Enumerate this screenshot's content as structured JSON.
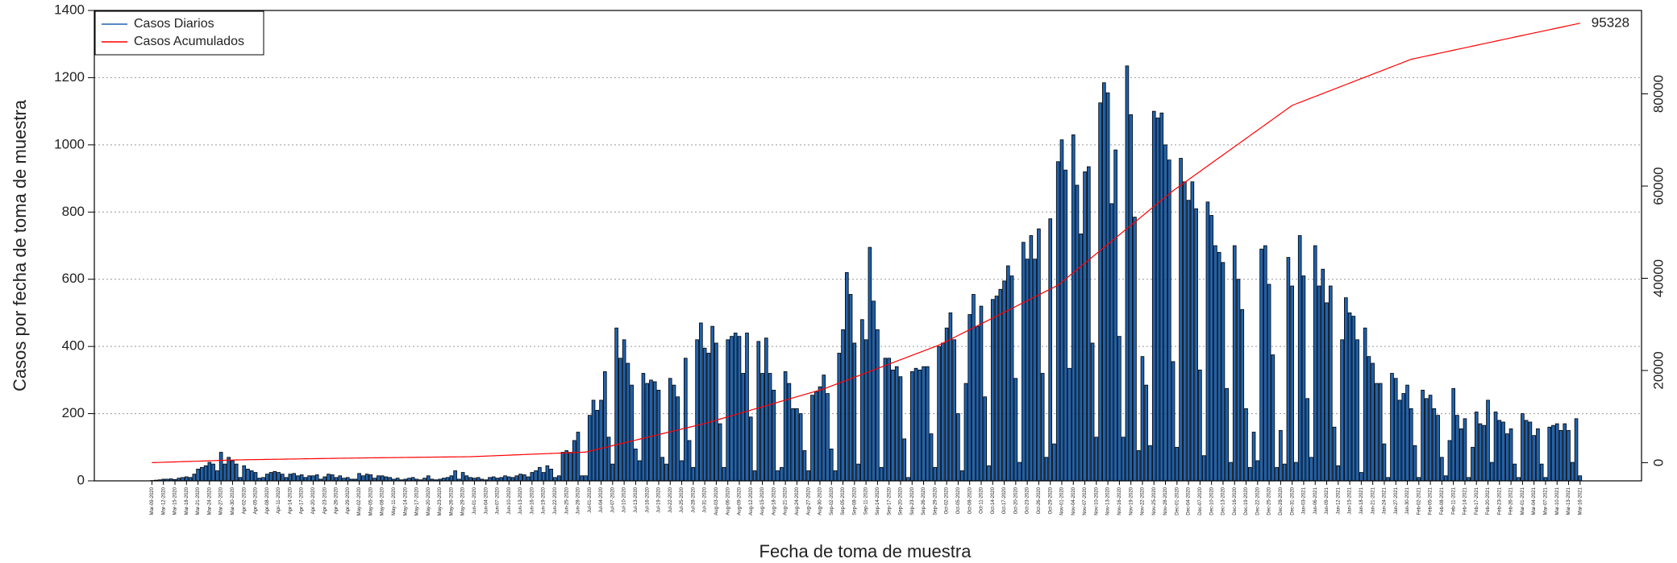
{
  "chart_data": {
    "type": "bar",
    "x_label": "Fecha de toma de muestra",
    "y_label": "Casos por fecha de toma de muestra",
    "legend": "upper left",
    "grid": true,
    "ylim": [
      0,
      1400
    ],
    "yticks": [
      0,
      200,
      400,
      600,
      800,
      1000,
      1200,
      1400
    ],
    "y2lim": [
      -3940,
      98090
    ],
    "y2ticks": [
      0,
      20000,
      40000,
      60000,
      80000
    ],
    "categories": [
      "Mar-09-2020",
      null,
      null,
      "Mar-12-2020",
      null,
      null,
      "Mar-15-2020",
      null,
      null,
      "Mar-18-2020",
      null,
      null,
      "Mar-21-2020",
      null,
      null,
      "Mar-24-2020",
      null,
      null,
      "Mar-27-2020",
      null,
      null,
      "Mar-30-2020",
      null,
      null,
      "Apr-02-2020",
      null,
      null,
      "Apr-05-2020",
      null,
      null,
      "Apr-08-2020",
      null,
      null,
      "Apr-11-2020",
      null,
      null,
      "Apr-14-2020",
      null,
      null,
      "Apr-17-2020",
      null,
      null,
      "Apr-20-2020",
      null,
      null,
      "Apr-23-2020",
      null,
      null,
      "Apr-26-2020",
      null,
      null,
      "Apr-29-2020",
      null,
      null,
      "May-02-2020",
      null,
      null,
      "May-05-2020",
      null,
      null,
      "May-08-2020",
      null,
      null,
      "May-11-2020",
      null,
      null,
      "May-14-2020",
      null,
      null,
      "May-17-2020",
      null,
      null,
      "May-20-2020",
      null,
      null,
      "May-23-2020",
      null,
      null,
      "May-26-2020",
      null,
      null,
      "May-29-2020",
      null,
      null,
      "Jun-01-2020",
      null,
      null,
      "Jun-04-2020",
      null,
      null,
      "Jun-07-2020",
      null,
      null,
      "Jun-10-2020",
      null,
      null,
      "Jun-13-2020",
      null,
      null,
      "Jun-16-2020",
      null,
      null,
      "Jun-19-2020",
      null,
      null,
      "Jun-22-2020",
      null,
      null,
      "Jun-25-2020",
      null,
      null,
      "Jun-28-2020",
      null,
      null,
      "Jul-01-2020",
      null,
      null,
      "Jul-04-2020",
      null,
      null,
      "Jul-07-2020",
      null,
      null,
      "Jul-10-2020",
      null,
      null,
      "Jul-13-2020",
      null,
      null,
      "Jul-16-2020",
      null,
      null,
      "Jul-19-2020",
      null,
      null,
      "Jul-22-2020",
      null,
      null,
      "Jul-25-2020",
      null,
      null,
      "Jul-28-2020",
      null,
      null,
      "Jul-31-2020",
      null,
      null,
      "Aug-03-2020",
      null,
      null,
      "Aug-06-2020",
      null,
      null,
      "Aug-09-2020",
      null,
      null,
      "Aug-12-2020",
      null,
      null,
      "Aug-15-2020",
      null,
      null,
      "Aug-18-2020",
      null,
      null,
      "Aug-21-2020",
      null,
      null,
      "Aug-24-2020",
      null,
      null,
      "Aug-27-2020",
      null,
      null,
      "Aug-30-2020",
      null,
      null,
      "Sep-02-2020",
      null,
      null,
      "Sep-05-2020",
      null,
      null,
      "Sep-08-2020",
      null,
      null,
      "Sep-11-2020",
      null,
      null,
      "Sep-14-2020",
      null,
      null,
      "Sep-17-2020",
      null,
      null,
      "Sep-20-2020",
      null,
      null,
      "Sep-23-2020",
      null,
      null,
      "Sep-26-2020",
      null,
      null,
      "Sep-29-2020",
      null,
      null,
      "Oct-02-2020",
      null,
      null,
      "Oct-05-2020",
      null,
      null,
      "Oct-08-2020",
      null,
      null,
      "Oct-11-2020",
      null,
      null,
      "Oct-14-2020",
      null,
      null,
      "Oct-17-2020",
      null,
      null,
      "Oct-20-2020",
      null,
      null,
      "Oct-23-2020",
      null,
      null,
      "Oct-26-2020",
      null,
      null,
      "Oct-29-2020",
      null,
      null,
      "Nov-01-2020",
      null,
      null,
      "Nov-04-2020",
      null,
      null,
      "Nov-07-2020",
      null,
      null,
      "Nov-10-2020",
      null,
      null,
      "Nov-13-2020",
      null,
      null,
      "Nov-16-2020",
      null,
      null,
      "Nov-19-2020",
      null,
      null,
      "Nov-22-2020",
      null,
      null,
      "Nov-25-2020",
      null,
      null,
      "Nov-28-2020",
      null,
      null,
      "Dec-01-2020",
      null,
      null,
      "Dec-04-2020",
      null,
      null,
      "Dec-07-2020",
      null,
      null,
      "Dec-10-2020",
      null,
      null,
      "Dec-13-2020",
      null,
      null,
      "Dec-16-2020",
      null,
      null,
      "Dec-19-2020",
      null,
      null,
      "Dec-22-2020",
      null,
      null,
      "Dec-25-2020",
      null,
      null,
      "Dec-28-2020",
      null,
      null,
      "Dec-31-2020",
      null,
      null,
      "Jan-03-2021",
      null,
      null,
      "Jan-06-2021",
      null,
      null,
      "Jan-09-2021",
      null,
      null,
      "Jan-12-2021",
      null,
      null,
      "Jan-15-2021",
      null,
      null,
      "Jan-18-2021",
      null,
      null,
      "Jan-21-2021",
      null,
      null,
      "Jan-24-2021",
      null,
      null,
      "Jan-27-2021",
      null,
      null,
      "Jan-30-2021",
      null,
      null,
      "Feb-02-2021",
      null,
      null,
      "Feb-05-2021",
      null,
      null,
      "Feb-08-2021",
      null,
      null,
      "Feb-11-2021",
      null,
      null,
      "Feb-14-2021",
      null,
      null,
      "Feb-17-2021",
      null,
      null,
      "Feb-20-2021",
      null,
      null,
      "Feb-23-2021",
      null,
      null,
      "Feb-26-2021",
      null,
      null,
      "Mar-01-2021",
      null,
      null,
      "Mar-04-2021",
      null,
      null,
      "Mar-07-2021",
      null,
      null,
      "Mar-10-2021",
      null,
      null,
      "Mar-13-2021",
      null,
      null,
      "Mar-16-2021"
    ],
    "series": [
      {
        "name": "Casos Diarios",
        "color": "#1f63b0",
        "values": [
          1,
          2,
          3,
          5,
          5,
          6,
          4,
          8,
          10,
          12,
          10,
          20,
          35,
          40,
          45,
          55,
          50,
          30,
          85,
          50,
          70,
          60,
          50,
          10,
          45,
          35,
          30,
          25,
          8,
          10,
          20,
          25,
          28,
          25,
          20,
          10,
          20,
          22,
          15,
          18,
          10,
          15,
          15,
          18,
          5,
          12,
          20,
          18,
          10,
          15,
          8,
          10,
          5,
          5,
          22,
          15,
          20,
          18,
          8,
          15,
          15,
          12,
          10,
          5,
          8,
          3,
          5,
          8,
          10,
          5,
          3,
          8,
          15,
          5,
          3,
          5,
          8,
          10,
          15,
          30,
          5,
          25,
          15,
          10,
          8,
          10,
          5,
          3,
          10,
          12,
          8,
          10,
          15,
          12,
          10,
          15,
          20,
          18,
          12,
          25,
          30,
          40,
          25,
          45,
          35,
          10,
          15,
          85,
          90,
          85,
          120,
          145,
          15,
          15,
          195,
          240,
          210,
          240,
          325,
          130,
          50,
          455,
          365,
          420,
          350,
          285,
          95,
          60,
          320,
          290,
          300,
          295,
          270,
          70,
          50,
          305,
          285,
          250,
          60,
          365,
          120,
          40,
          420,
          470,
          395,
          380,
          460,
          410,
          170,
          40,
          420,
          430,
          440,
          430,
          320,
          440,
          190,
          30,
          415,
          320,
          425,
          320,
          270,
          30,
          40,
          325,
          290,
          215,
          215,
          200,
          90,
          30,
          255,
          265,
          280,
          315,
          260,
          95,
          30,
          380,
          450,
          620,
          555,
          410,
          50,
          480,
          420,
          695,
          535,
          450,
          40,
          365,
          365,
          330,
          340,
          310,
          125,
          10,
          325,
          335,
          330,
          340,
          340,
          140,
          40,
          400,
          410,
          455,
          500,
          420,
          200,
          30,
          290,
          495,
          555,
          460,
          520,
          250,
          45,
          540,
          550,
          570,
          595,
          640,
          610,
          305,
          55,
          710,
          660,
          730,
          660,
          750,
          320,
          70,
          780,
          110,
          950,
          1015,
          925,
          335,
          1030,
          880,
          735,
          920,
          935,
          410,
          130,
          1125,
          1185,
          1155,
          825,
          985,
          430,
          130,
          1235,
          1090,
          785,
          90,
          370,
          285,
          105,
          1100,
          1080,
          1095,
          1000,
          955,
          355,
          100,
          960,
          890,
          835,
          890,
          810,
          330,
          75,
          830,
          790,
          700,
          680,
          650,
          275,
          55,
          700,
          600,
          510,
          215,
          40,
          145,
          60,
          690,
          700,
          585,
          375,
          40,
          150,
          50,
          665,
          580,
          55,
          730,
          610,
          245,
          70,
          700,
          580,
          630,
          530,
          580,
          160,
          45,
          420,
          545,
          500,
          490,
          420,
          25,
          455,
          370,
          350,
          290,
          290,
          110,
          10,
          320,
          305,
          240,
          260,
          285,
          215,
          105,
          10,
          270,
          245,
          255,
          215,
          195,
          70,
          15,
          120,
          275,
          195,
          155,
          185,
          10,
          100,
          205,
          170,
          165,
          240,
          55,
          205,
          180,
          175,
          140,
          155,
          50,
          10,
          200,
          180,
          175,
          135,
          155,
          50,
          10,
          160,
          165,
          170,
          150,
          170,
          150,
          55,
          185,
          15
        ]
      },
      {
        "name": "Casos Acumulados",
        "color": "#ff0000",
        "axis": "y2",
        "values": [
          10,
          37,
          64,
          90,
          117,
          144,
          171,
          198,
          225,
          251,
          278,
          305,
          332,
          359,
          385,
          412,
          439,
          466,
          493,
          520,
          546,
          573,
          600,
          613,
          627,
          640,
          653,
          667,
          680,
          693,
          707,
          720,
          733,
          747,
          760,
          773,
          787,
          800,
          813,
          827,
          840,
          853,
          867,
          880,
          893,
          907,
          920,
          933,
          947,
          960,
          973,
          987,
          1000,
          1010,
          1019,
          1029,
          1039,
          1048,
          1058,
          1068,
          1077,
          1087,
          1097,
          1106,
          1116,
          1126,
          1135,
          1145,
          1155,
          1165,
          1174,
          1184,
          1194,
          1203,
          1213,
          1223,
          1232,
          1242,
          1252,
          1261,
          1271,
          1281,
          1290,
          1300,
          1333,
          1367,
          1400,
          1433,
          1467,
          1500,
          1533,
          1567,
          1600,
          1633,
          1667,
          1700,
          1733,
          1767,
          1800,
          1833,
          1867,
          1900,
          1933,
          1967,
          2000,
          2033,
          2067,
          2100,
          2133,
          2167,
          2200,
          2233,
          2267,
          2300,
          2500,
          2700,
          2900,
          3100,
          3300,
          3500,
          3700,
          3900,
          4100,
          4300,
          4500,
          4700,
          4900,
          5100,
          5300,
          5500,
          5700,
          5900,
          6100,
          6300,
          6500,
          6700,
          6900,
          7100,
          7300,
          7500,
          7700,
          7900,
          8100,
          8300,
          8500,
          8742,
          8984,
          9226,
          9468,
          9710,
          9952,
          10194,
          10435,
          10677,
          10919,
          11161,
          11403,
          11645,
          11887,
          12129,
          12371,
          12613,
          12855,
          13097,
          13339,
          13581,
          13823,
          14065,
          14306,
          14548,
          14790,
          15032,
          15274,
          15516,
          15758,
          16000,
          16317,
          16633,
          16950,
          17267,
          17583,
          17900,
          18217,
          18533,
          18850,
          19167,
          19483,
          19800,
          20117,
          20433,
          20750,
          21067,
          21383,
          21700,
          22017,
          22333,
          22650,
          22967,
          23283,
          23600,
          23917,
          24233,
          24550,
          24867,
          25183,
          25500,
          25919,
          26339,
          26758,
          27177,
          27597,
          28016,
          28435,
          28855,
          29274,
          29694,
          30113,
          30532,
          30952,
          31371,
          31790,
          32210,
          32629,
          33048,
          33468,
          33887,
          34306,
          34726,
          35145,
          35565,
          35984,
          36403,
          36823,
          37242,
          37661,
          38081,
          38500,
          39183,
          39867,
          40550,
          41233,
          41917,
          42600,
          43283,
          43967,
          44650,
          45333,
          46017,
          46700,
          47383,
          48067,
          48750,
          49433,
          50117,
          50800,
          51483,
          52167,
          52850,
          53533,
          54217,
          54900,
          55583,
          56267,
          56950,
          57633,
          58317,
          59000,
          59597,
          60194,
          60790,
          61387,
          61984,
          62581,
          63177,
          63774,
          64371,
          64968,
          65565,
          66161,
          66758,
          67355,
          67952,
          68548,
          69145,
          69742,
          70339,
          70935,
          71532,
          72129,
          72726,
          73323,
          73919,
          74516,
          75113,
          75710,
          76306,
          76903,
          77500,
          77823,
          78145,
          78468,
          78790,
          79113,
          79435,
          79758,
          80081,
          80403,
          80726,
          81048,
          81371,
          81694,
          82016,
          82339,
          82661,
          82984,
          83306,
          83629,
          83952,
          84274,
          84597,
          84919,
          85242,
          85565,
          85887,
          86210,
          86532,
          86855,
          87177,
          87500,
          87679,
          87857,
          88036,
          88214,
          88393,
          88571,
          88750,
          88929,
          89107,
          89286,
          89464,
          89643,
          89821,
          90000,
          90179,
          90357,
          90536,
          90714,
          90893,
          91071,
          91250,
          91429,
          91607,
          91786,
          91964,
          92143,
          92321,
          92500,
          92677,
          92854,
          93030,
          93207,
          93384,
          93561,
          93737,
          93914,
          94091,
          94268,
          94444,
          94621,
          94798,
          94975,
          95151,
          95328
        ]
      }
    ]
  }
}
